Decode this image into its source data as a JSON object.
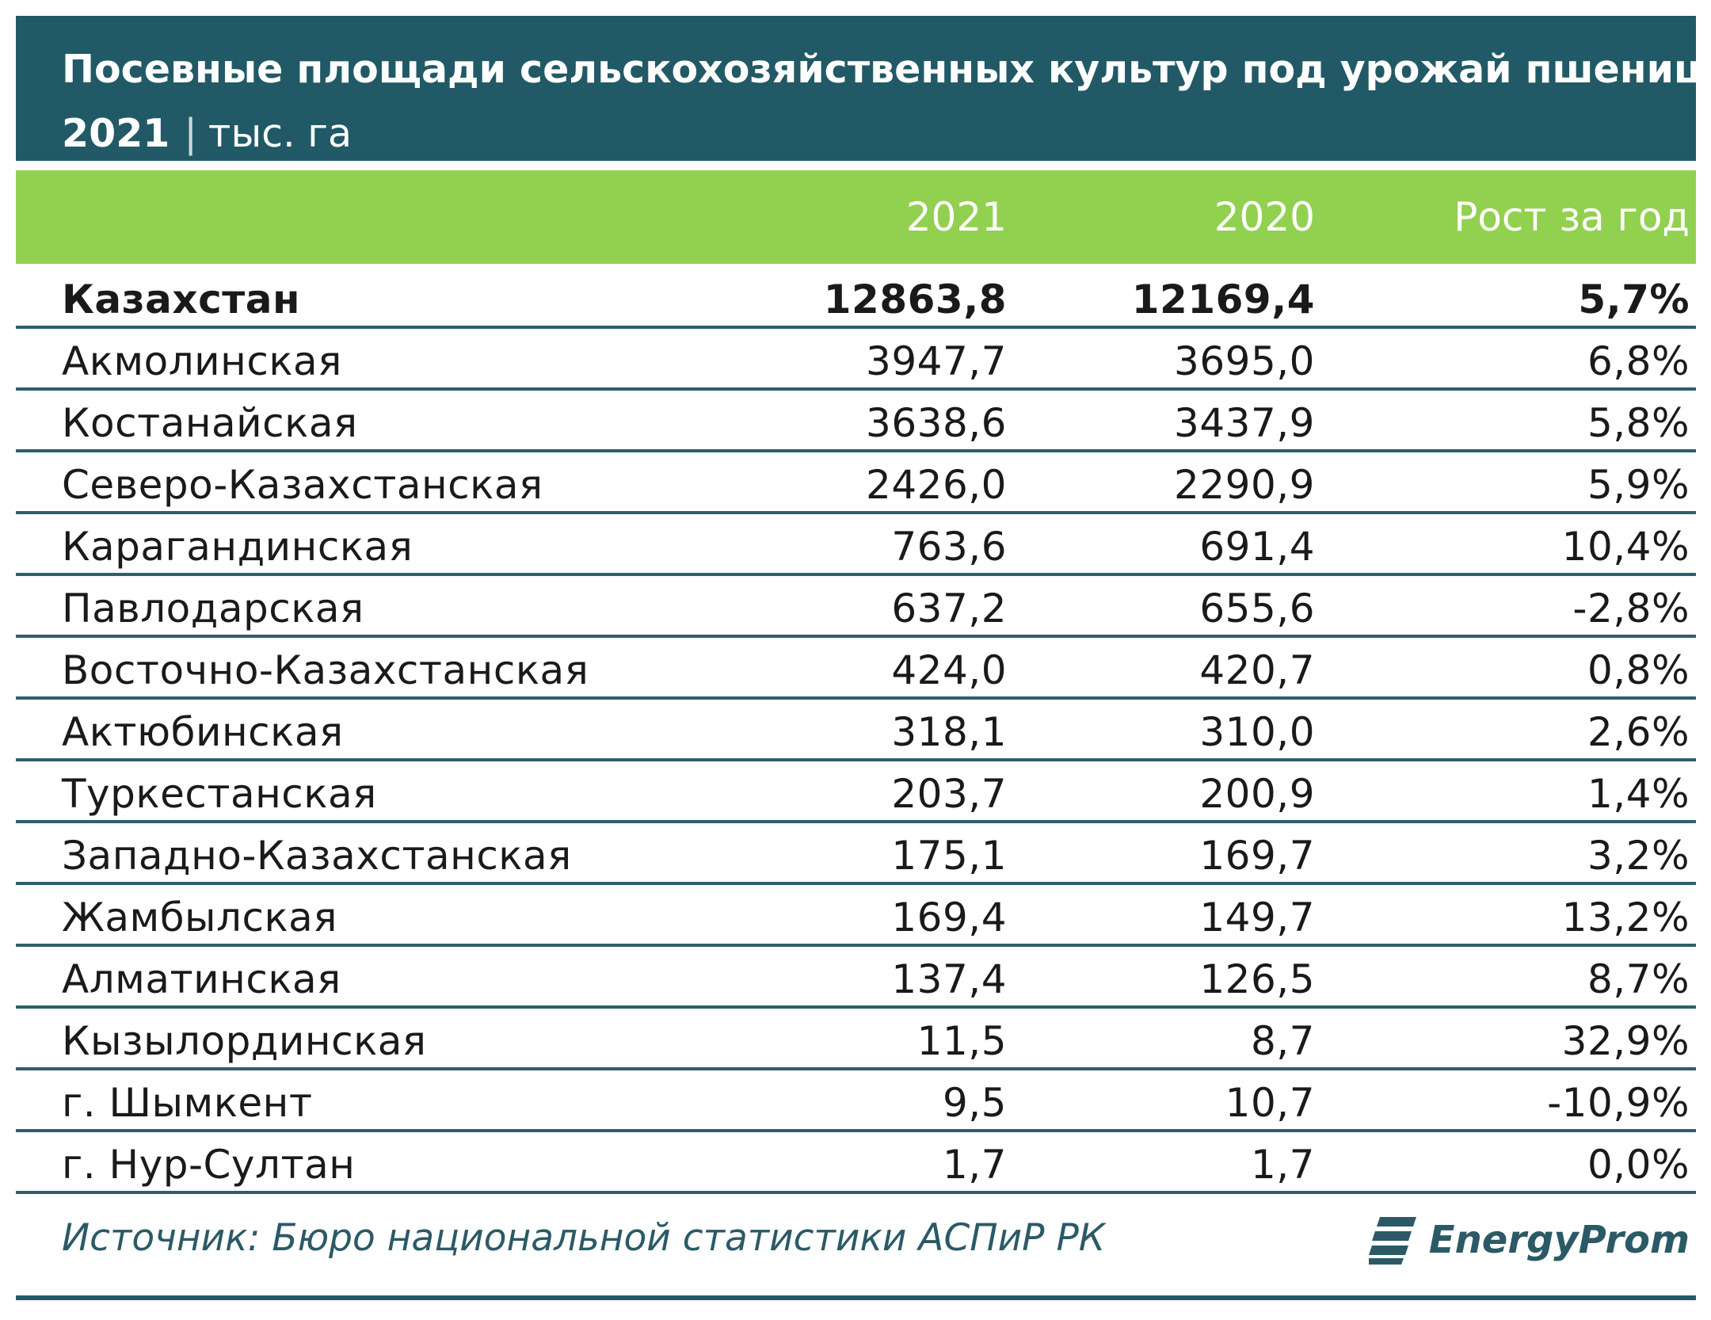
{
  "title": {
    "line1": "Посевные площади сельскохозяйственных культур под урожай пшеницы.",
    "year": "2021",
    "separator": "|",
    "unit": "тыс. га"
  },
  "table": {
    "headers": {
      "name": "",
      "y2021": "2021",
      "y2020": "2020",
      "growth": "Рост за год"
    },
    "rows": [
      {
        "name": "Казахстан",
        "y2021": "12863,8",
        "y2020": "12169,4",
        "growth": "5,7%"
      },
      {
        "name": "Акмолинская",
        "y2021": "3947,7",
        "y2020": "3695,0",
        "growth": "6,8%"
      },
      {
        "name": "Костанайская",
        "y2021": "3638,6",
        "y2020": "3437,9",
        "growth": "5,8%"
      },
      {
        "name": "Северо-Казахстанская",
        "y2021": "2426,0",
        "y2020": "2290,9",
        "growth": "5,9%"
      },
      {
        "name": "Карагандинская",
        "y2021": "763,6",
        "y2020": "691,4",
        "growth": "10,4%"
      },
      {
        "name": "Павлодарская",
        "y2021": "637,2",
        "y2020": "655,6",
        "growth": "-2,8%"
      },
      {
        "name": "Восточно-Казахстанская",
        "y2021": "424,0",
        "y2020": "420,7",
        "growth": "0,8%"
      },
      {
        "name": "Актюбинская",
        "y2021": "318,1",
        "y2020": "310,0",
        "growth": "2,6%"
      },
      {
        "name": "Туркестанская",
        "y2021": "203,7",
        "y2020": "200,9",
        "growth": "1,4%"
      },
      {
        "name": "Западно-Казахстанская",
        "y2021": "175,1",
        "y2020": "169,7",
        "growth": "3,2%"
      },
      {
        "name": "Жамбылская",
        "y2021": "169,4",
        "y2020": "149,7",
        "growth": "13,2%"
      },
      {
        "name": "Алматинская",
        "y2021": "137,4",
        "y2020": "126,5",
        "growth": "8,7%"
      },
      {
        "name": "Кызылординская",
        "y2021": "11,5",
        "y2020": "8,7",
        "growth": "32,9%"
      },
      {
        "name": "г. Шымкент",
        "y2021": "9,5",
        "y2020": "10,7",
        "growth": "-10,9%"
      },
      {
        "name": "г. Нур-Султан",
        "y2021": "1,7",
        "y2020": "1,7",
        "growth": "0,0%"
      }
    ]
  },
  "footer": {
    "source": "Источник: Бюро национальной статистики АСПиР РК",
    "logo_text": "EnergyProm",
    "logo_icon": "energyprom-logo-icon"
  },
  "colors": {
    "title_bg": "#215a66",
    "header_bg": "#92d050",
    "row_border": "#2e5f6b"
  }
}
